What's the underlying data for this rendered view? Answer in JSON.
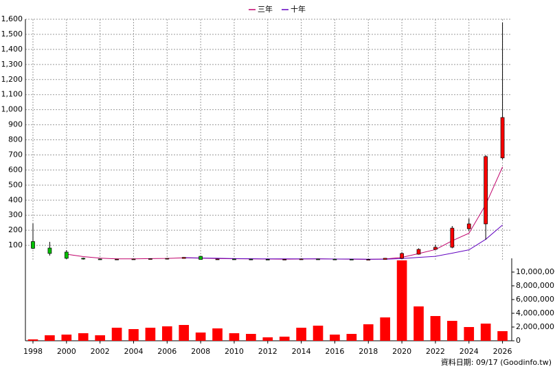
{
  "chart_data": {
    "type": "candlestick",
    "x": [
      1998,
      1999,
      2000,
      2001,
      2002,
      2003,
      2004,
      2005,
      2006,
      2007,
      2008,
      2009,
      2010,
      2011,
      2012,
      2013,
      2014,
      2015,
      2016,
      2017,
      2018,
      2019,
      2020,
      2021,
      2022,
      2023,
      2024,
      2025,
      2026
    ],
    "open": [
      125,
      82,
      55,
      14,
      9,
      7,
      8,
      9,
      11,
      13,
      27,
      6,
      9,
      8,
      7,
      6,
      7,
      9,
      8,
      7,
      6,
      6,
      14,
      41,
      73,
      87,
      210,
      242,
      680
    ],
    "high": [
      245,
      123,
      68,
      18,
      10,
      10,
      11,
      13,
      15,
      22,
      30,
      11,
      11,
      10,
      9,
      9,
      12,
      11,
      10,
      9,
      8,
      16,
      54,
      80,
      105,
      228,
      278,
      698,
      1578
    ],
    "low": [
      75,
      32,
      9,
      5,
      5,
      5,
      6,
      7,
      9,
      11,
      5,
      5,
      6,
      6,
      5,
      5,
      6,
      7,
      6,
      5,
      5,
      5,
      10,
      38,
      70,
      80,
      196,
      137,
      670
    ],
    "close": [
      80,
      46,
      14,
      9,
      7,
      8,
      9,
      11,
      13,
      20,
      6,
      9,
      8,
      7,
      6,
      7,
      9,
      8,
      7,
      6,
      6,
      14,
      46,
      73,
      87,
      214,
      242,
      689,
      948
    ],
    "up_color": "#ff0000",
    "down_color": "#00c000",
    "series": [
      {
        "name": "三年",
        "color": "#c0006a",
        "values": [
          null,
          null,
          41,
          25,
          15,
          10,
          10,
          12,
          13,
          17,
          15,
          12,
          11,
          10,
          9,
          8,
          9,
          10,
          9,
          8,
          7,
          9,
          20,
          45,
          72,
          130,
          180,
          370,
          620
        ]
      },
      {
        "name": "十年",
        "color": "#6000c0",
        "values": [
          null,
          null,
          null,
          null,
          null,
          null,
          null,
          null,
          null,
          18,
          16,
          14,
          12,
          11,
          10,
          10,
          10,
          10,
          9,
          9,
          8,
          8,
          12,
          20,
          27,
          48,
          70,
          140,
          235
        ]
      }
    ],
    "volume": {
      "color": "#ff0000",
      "values": [
        200000,
        800000,
        900000,
        1100000,
        800000,
        1900000,
        1700000,
        1900000,
        2100000,
        2300000,
        1200000,
        1800000,
        1100000,
        1000000,
        500000,
        600000,
        1900000,
        2200000,
        900000,
        1000000,
        2400000,
        3400000,
        11700000,
        5000000,
        3600000,
        2900000,
        2000000,
        2500000,
        1400000
      ]
    },
    "xlim": [
      1997.55,
      2026.55
    ],
    "xticks": [
      1998,
      2000,
      2002,
      2004,
      2006,
      2008,
      2010,
      2012,
      2014,
      2016,
      2018,
      2020,
      2022,
      2024,
      2026
    ],
    "ylim": [
      0,
      1600
    ],
    "yticks": [
      100,
      200,
      300,
      400,
      500,
      600,
      700,
      800,
      900,
      {
        "value": 1000,
        "label": "1,000"
      },
      {
        "value": 1100,
        "label": "1,100"
      },
      {
        "value": 1200,
        "label": "1,200"
      },
      {
        "value": 1300,
        "label": "1,300"
      },
      {
        "value": 1400,
        "label": "1,400"
      },
      {
        "value": 1500,
        "label": "1,500"
      },
      {
        "value": 1600,
        "label": "1,600"
      }
    ],
    "y2lim": [
      0,
      12000000
    ],
    "y2ticks": [
      0,
      {
        "value": 2000000,
        "label": "2,000,000"
      },
      {
        "value": 4000000,
        "label": "4,000,000"
      },
      {
        "value": 6000000,
        "label": "6,000,000"
      },
      {
        "value": 8000000,
        "label": "8,000,000"
      },
      {
        "value": 10000000,
        "label": "10,000,000"
      }
    ],
    "grid": true,
    "footer": "資料日期: 09/17   (Goodinfo.tw)"
  }
}
